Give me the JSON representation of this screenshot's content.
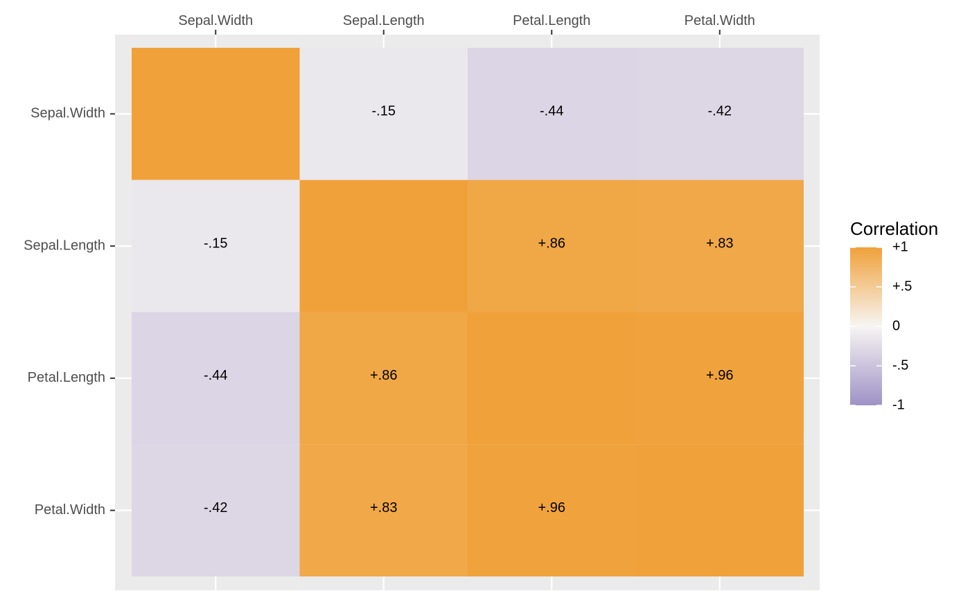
{
  "chart_data": {
    "type": "heatmap",
    "title": "",
    "xlabel": "",
    "ylabel": "",
    "x_categories": [
      "Sepal.Width",
      "Sepal.Length",
      "Petal.Length",
      "Petal.Width"
    ],
    "y_categories": [
      "Sepal.Width",
      "Sepal.Length",
      "Petal.Length",
      "Petal.Width"
    ],
    "x_axis_position": "top",
    "values": [
      [
        1.0,
        -0.15,
        -0.44,
        -0.42
      ],
      [
        -0.15,
        1.0,
        0.86,
        0.83
      ],
      [
        -0.44,
        0.86,
        1.0,
        0.96
      ],
      [
        -0.42,
        0.83,
        0.96,
        1.0
      ]
    ],
    "labels": [
      [
        "",
        "-.15",
        "-.44",
        "-.42"
      ],
      [
        "-.15",
        "",
        "+.86",
        "+.83"
      ],
      [
        "-.44",
        "+.86",
        "",
        "+.96"
      ],
      [
        "-.42",
        "+.83",
        "+.96",
        ""
      ]
    ],
    "legend": {
      "title": "Correlation",
      "placement": "right",
      "range": [
        -1,
        1
      ],
      "breaks": [
        1,
        0.5,
        0,
        -0.5,
        -1
      ],
      "break_labels": [
        "+1",
        "+.5",
        "0",
        "-.5",
        "-1"
      ]
    },
    "colors": {
      "low": "#9f92c6",
      "mid": "#f7f5f3",
      "high": "#f0a13a",
      "panel_background": "#ebebeb",
      "grid": "#ffffff"
    },
    "grid": true
  }
}
